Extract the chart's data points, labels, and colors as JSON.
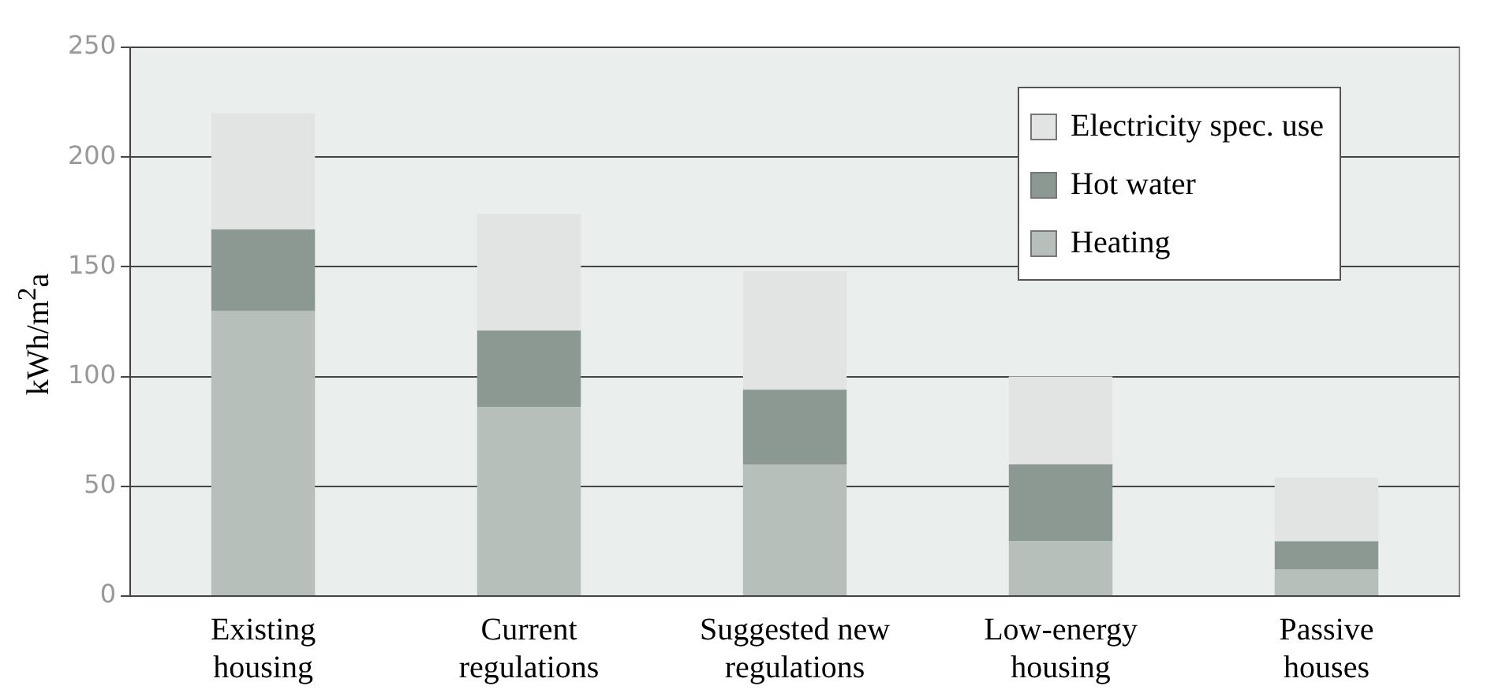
{
  "chart_data": {
    "type": "bar",
    "stacked": true,
    "ylabel": "kWh/m$^{2}$a",
    "categories": [
      "Existing housing",
      "Current regulations",
      "Suggested new regulations",
      "Low-energy housing",
      "Passive houses"
    ],
    "series": [
      {
        "name": "Heating",
        "color": "#b6bfba",
        "values": [
          130,
          86,
          60,
          25,
          12
        ]
      },
      {
        "name": "Hot water",
        "color": "#8c9992",
        "values": [
          37,
          35,
          34,
          35,
          13
        ]
      },
      {
        "name": "Electricity spec. use",
        "color": "#e1e4e3",
        "values": [
          53,
          53,
          54,
          40,
          29
        ]
      }
    ],
    "ylim": [
      0,
      250
    ],
    "yticks": [
      0,
      50,
      100,
      150,
      200,
      250
    ],
    "grid": "y",
    "legend": "top right"
  }
}
